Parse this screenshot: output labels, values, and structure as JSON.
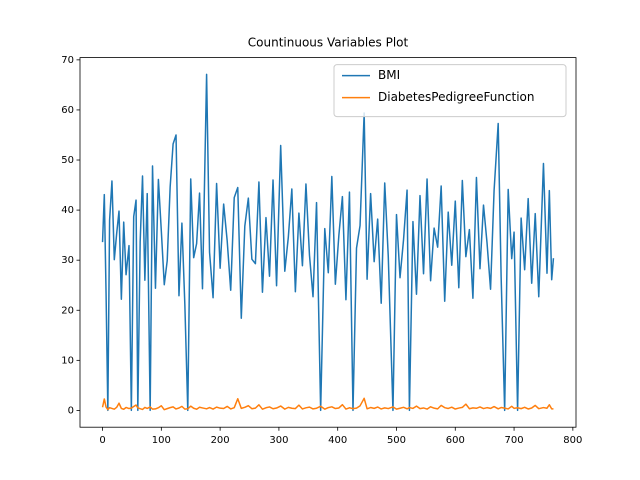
{
  "chart_data": {
    "type": "line",
    "title": "Countinuous Variables Plot",
    "x": [
      0,
      3,
      6,
      9,
      12,
      16,
      20,
      24,
      28,
      32,
      36,
      40,
      45,
      49,
      53,
      57,
      60,
      64,
      68,
      72,
      76,
      81,
      85,
      90,
      95,
      100,
      105,
      110,
      115,
      120,
      125,
      130,
      135,
      140,
      145,
      150,
      155,
      160,
      165,
      170,
      177,
      182,
      188,
      194,
      200,
      206,
      212,
      218,
      224,
      230,
      236,
      242,
      248,
      254,
      260,
      266,
      272,
      278,
      284,
      290,
      296,
      303,
      310,
      316,
      322,
      328,
      334,
      340,
      346,
      352,
      358,
      364,
      371,
      378,
      384,
      390,
      396,
      402,
      408,
      414,
      420,
      426,
      432,
      438,
      445,
      450,
      456,
      462,
      468,
      474,
      480,
      486,
      494,
      500,
      506,
      512,
      518,
      522,
      528,
      534,
      540,
      546,
      552,
      558,
      564,
      570,
      576,
      582,
      588,
      594,
      600,
      606,
      612,
      618,
      624,
      630,
      636,
      642,
      648,
      654,
      660,
      666,
      673,
      678,
      684,
      690,
      696,
      700,
      706,
      712,
      718,
      724,
      730,
      736,
      742,
      750,
      756,
      760,
      764,
      767
    ],
    "series": [
      {
        "name": "BMI",
        "color": "#1f77b4",
        "values": [
          33.6,
          43.1,
          23.3,
          0,
          38.0,
          45.8,
          30.1,
          35.3,
          39.8,
          22.2,
          37.6,
          27.1,
          32.9,
          0,
          38.7,
          42.0,
          0,
          33.7,
          46.8,
          26.0,
          43.3,
          0,
          48.8,
          24.4,
          46.1,
          35.8,
          25.1,
          29.9,
          44.6,
          53.2,
          55.0,
          22.9,
          37.4,
          21.1,
          0,
          46.2,
          30.5,
          33.3,
          43.4,
          24.3,
          67.1,
          31.6,
          22.5,
          45.3,
          28.4,
          41.2,
          33.9,
          24.0,
          42.5,
          44.5,
          18.4,
          36.8,
          42.4,
          30.2,
          29.3,
          45.6,
          23.6,
          38.5,
          26.8,
          46.0,
          24.9,
          52.9,
          27.8,
          34.6,
          44.2,
          23.7,
          39.4,
          28.9,
          45.2,
          31.0,
          22.7,
          41.5,
          0,
          36.3,
          27.5,
          46.7,
          25.2,
          35.0,
          42.7,
          22.1,
          43.6,
          0,
          32.4,
          36.9,
          59.4,
          26.2,
          43.3,
          29.7,
          38.2,
          21.4,
          45.4,
          30.8,
          0,
          39.1,
          26.5,
          34.1,
          44.0,
          0,
          37.7,
          23.2,
          42.9,
          27.3,
          46.2,
          25.9,
          36.4,
          32.6,
          44.8,
          21.8,
          39.6,
          29.0,
          41.8,
          24.5,
          45.9,
          30.7,
          36.1,
          22.4,
          46.5,
          28.3,
          41.0,
          33.5,
          24.2,
          43.9,
          57.3,
          26.7,
          0,
          44.1,
          30.3,
          35.6,
          0,
          38.4,
          28.1,
          42.3,
          25.4,
          39.3,
          22.7,
          49.3,
          27.4,
          43.9,
          26.1,
          30.4
        ]
      },
      {
        "name": "DiabetesPedigreeFunction",
        "color": "#ff7f0e",
        "values": [
          0.63,
          2.29,
          0.67,
          0.17,
          0.55,
          0.4,
          0.25,
          0.62,
          1.44,
          0.39,
          0.23,
          0.59,
          0.38,
          0.47,
          0.78,
          1.07,
          0.52,
          0.34,
          0.19,
          0.6,
          0.4,
          0.7,
          0.26,
          0.3,
          0.54,
          0.93,
          0.15,
          0.36,
          0.56,
          0.71,
          0.29,
          0.48,
          0.81,
          0.26,
          0.33,
          0.85,
          0.43,
          0.24,
          0.63,
          0.5,
          0.32,
          0.58,
          0.27,
          0.66,
          0.45,
          0.39,
          0.8,
          0.3,
          0.55,
          2.33,
          0.41,
          0.62,
          0.95,
          0.34,
          0.46,
          1.12,
          0.25,
          0.53,
          0.7,
          0.33,
          0.48,
          0.88,
          0.26,
          0.61,
          0.43,
          0.37,
          1.06,
          0.29,
          0.52,
          0.66,
          0.3,
          0.44,
          0.83,
          0.25,
          0.56,
          0.72,
          0.38,
          0.49,
          1.15,
          0.27,
          0.53,
          0.35,
          0.46,
          0.92,
          2.42,
          0.33,
          0.58,
          0.41,
          0.68,
          0.29,
          0.51,
          0.37,
          0.7,
          0.26,
          0.44,
          0.62,
          0.31,
          0.57,
          0.4,
          0.85,
          0.36,
          0.49,
          0.27,
          0.73,
          0.45,
          0.31,
          1.01,
          0.55,
          0.39,
          0.64,
          0.28,
          0.47,
          0.6,
          1.26,
          0.34,
          0.51,
          0.43,
          0.69,
          0.37,
          0.55,
          0.4,
          0.77,
          0.32,
          0.58,
          0.46,
          0.3,
          0.82,
          0.41,
          0.53,
          0.36,
          0.63,
          0.29,
          0.48,
          1.0,
          0.35,
          0.57,
          0.44,
          1.13,
          0.32,
          0.32
        ]
      }
    ],
    "xlim": [
      -38.35,
      805.35
    ],
    "ylim": [
      -3.35,
      70.45
    ],
    "xticks": [
      0,
      100,
      200,
      300,
      400,
      500,
      600,
      700,
      800
    ],
    "yticks": [
      0,
      10,
      20,
      30,
      40,
      50,
      60,
      70
    ],
    "grid": false,
    "legend": "upper right"
  }
}
